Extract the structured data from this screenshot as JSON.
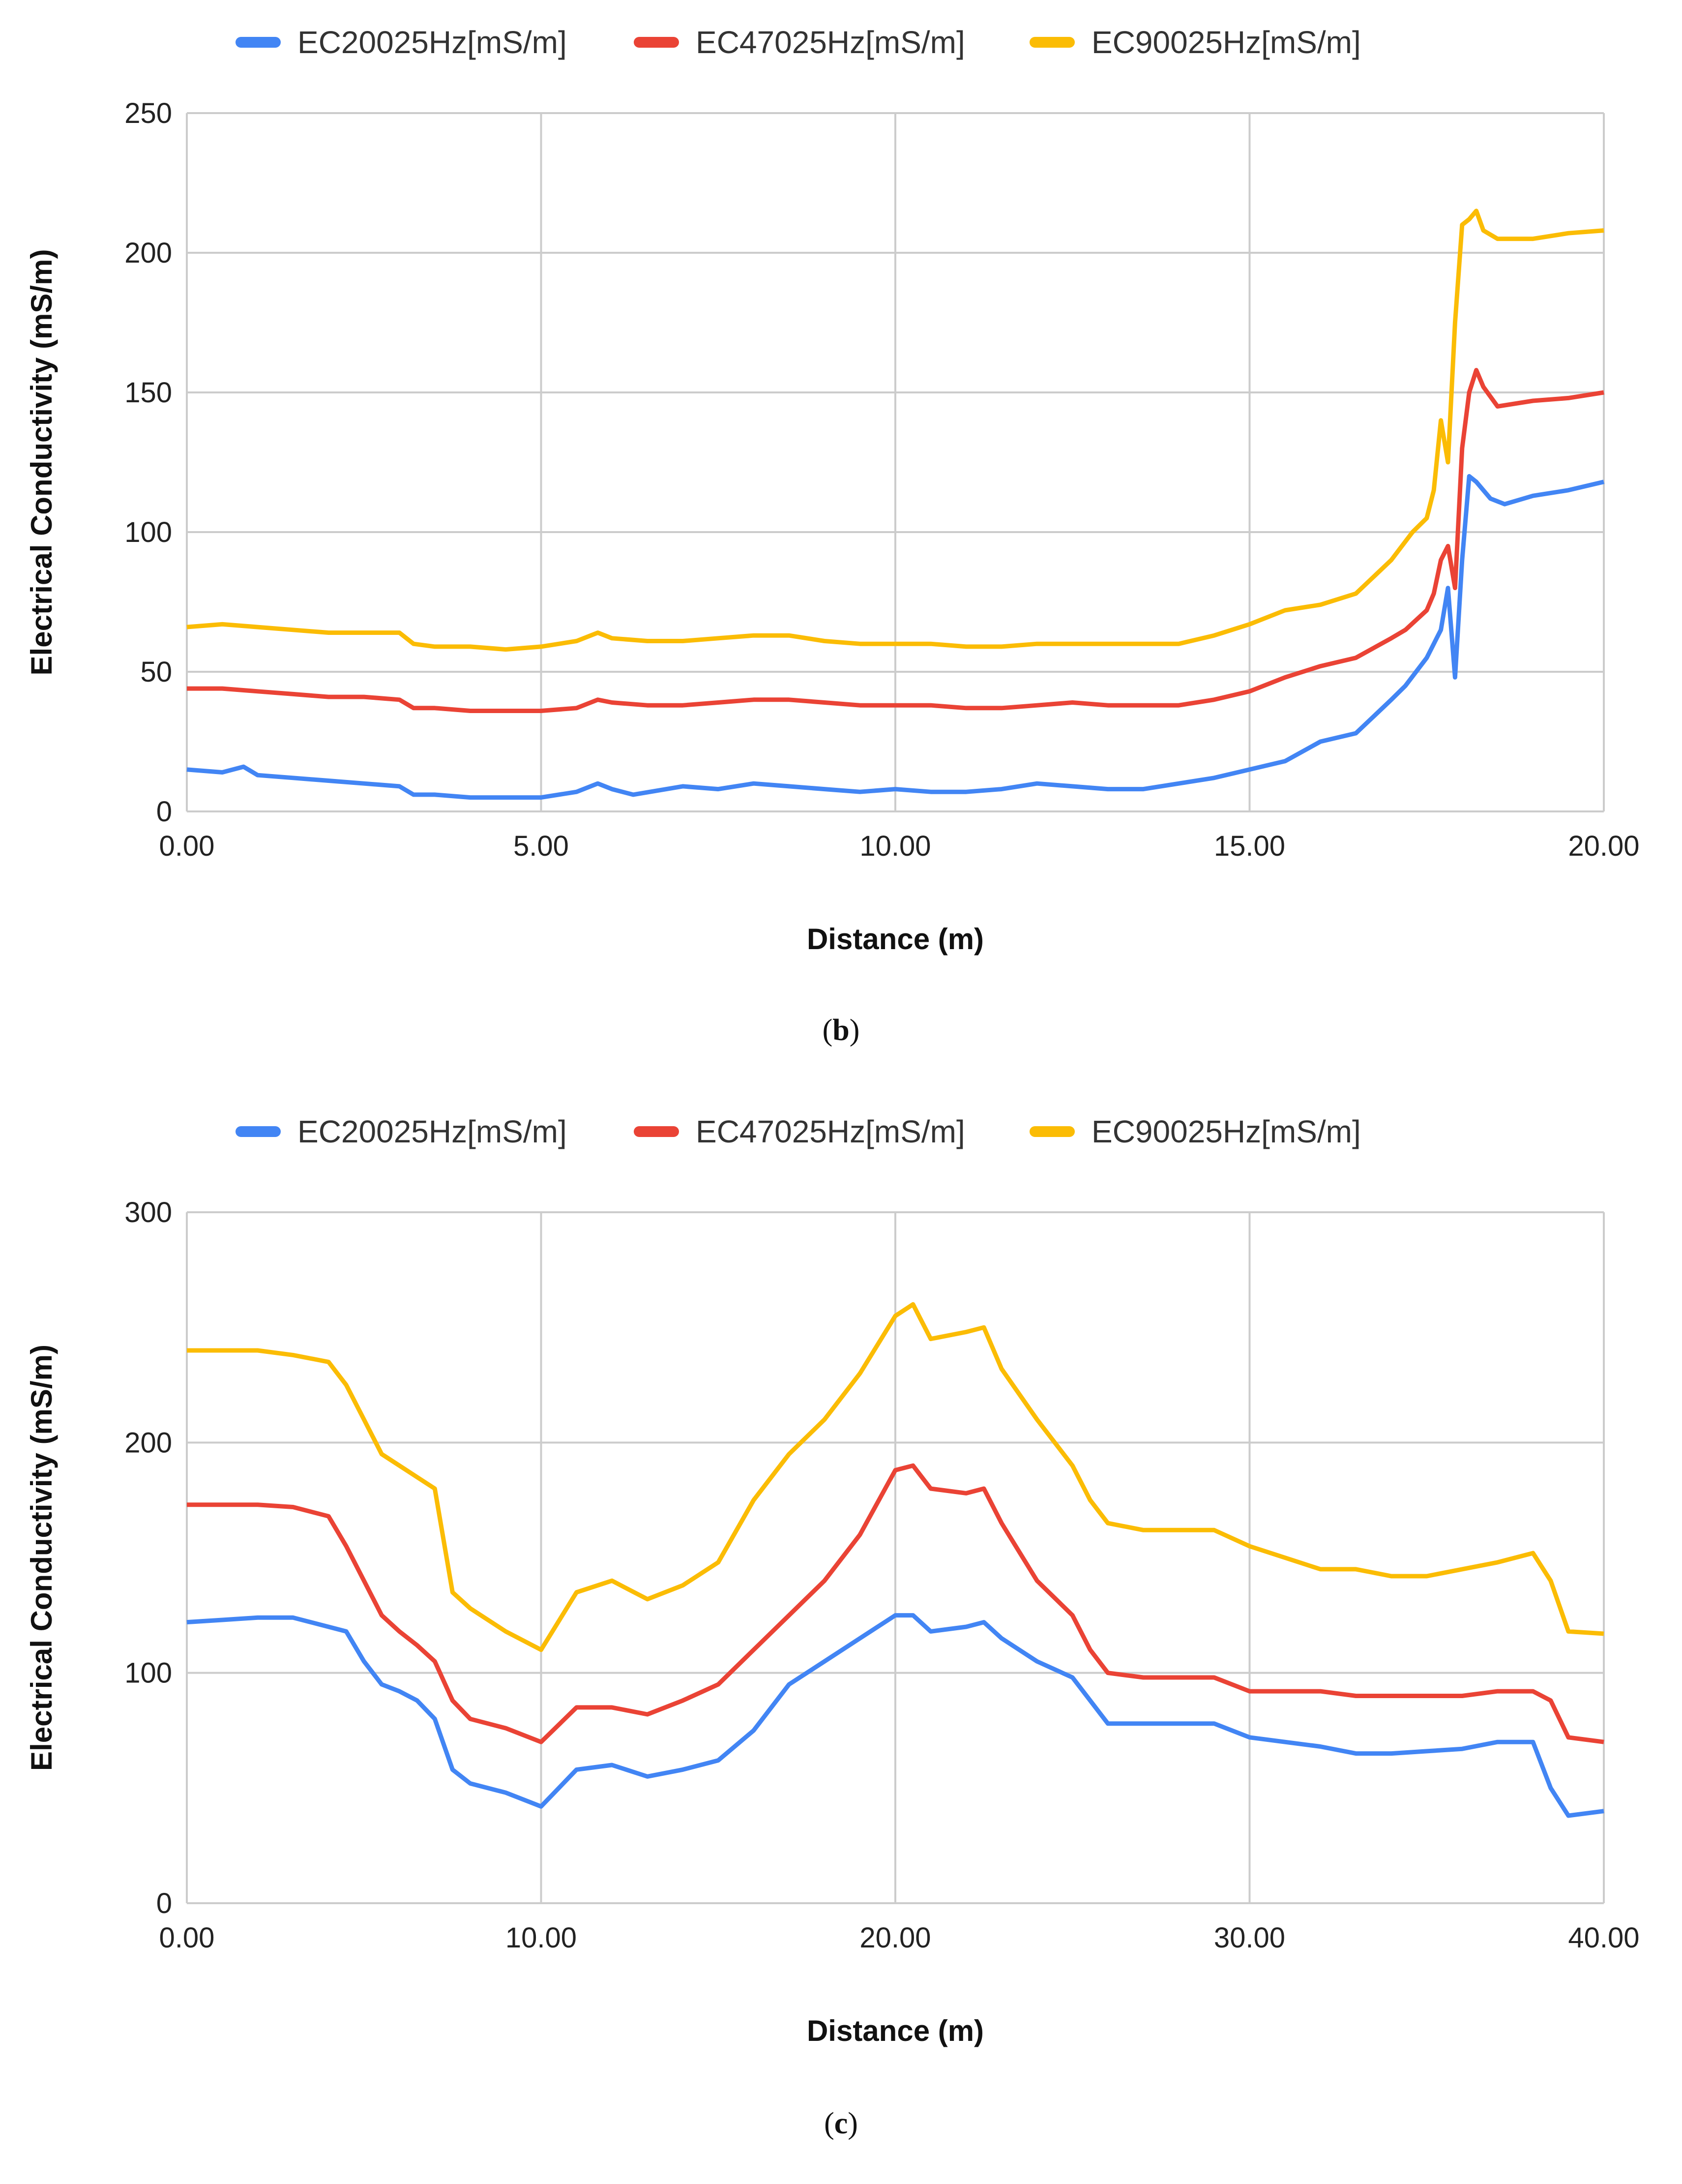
{
  "chart_data": [
    {
      "type": "line",
      "panel": "b",
      "caption": "b",
      "title": "",
      "xlabel": "Distance (m)",
      "ylabel": "Electrical Conductivity (mS/m)",
      "xlim": [
        0,
        20
      ],
      "ylim": [
        0,
        250
      ],
      "xticks": [
        "0.00",
        "5.00",
        "10.00",
        "15.00",
        "20.00"
      ],
      "yticks": [
        "0",
        "50",
        "100",
        "150",
        "200",
        "250"
      ],
      "grid": true,
      "legend_position": "top",
      "series": [
        {
          "name": "EC20025Hz[mS/m]",
          "color": "#4285f4",
          "x": [
            0,
            0.5,
            0.8,
            1,
            1.5,
            2,
            2.5,
            3,
            3.2,
            3.5,
            4,
            4.5,
            5,
            5.5,
            5.8,
            6,
            6.3,
            7,
            7.5,
            8,
            8.5,
            9,
            9.5,
            10,
            10.5,
            11,
            11.5,
            12,
            12.5,
            13,
            13.5,
            14,
            14.5,
            15,
            15.5,
            16,
            16.5,
            17,
            17.2,
            17.5,
            17.7,
            17.8,
            17.9,
            18,
            18.1,
            18.2,
            18.4,
            18.6,
            19,
            19.5,
            20
          ],
          "y": [
            15,
            14,
            16,
            13,
            12,
            11,
            10,
            9,
            6,
            6,
            5,
            5,
            5,
            7,
            10,
            8,
            6,
            9,
            8,
            10,
            9,
            8,
            7,
            8,
            7,
            7,
            8,
            10,
            9,
            8,
            8,
            10,
            12,
            15,
            18,
            25,
            28,
            40,
            45,
            55,
            65,
            80,
            48,
            90,
            120,
            118,
            112,
            110,
            113,
            115,
            118
          ]
        },
        {
          "name": "EC47025Hz[mS/m]",
          "color": "#ea4335",
          "x": [
            0,
            0.5,
            1,
            1.5,
            2,
            2.5,
            3,
            3.2,
            3.5,
            4,
            4.5,
            5,
            5.5,
            5.8,
            6,
            6.5,
            7,
            7.5,
            8,
            8.5,
            9,
            9.5,
            10,
            10.5,
            11,
            11.5,
            12,
            12.5,
            13,
            13.5,
            14,
            14.5,
            15,
            15.5,
            16,
            16.5,
            17,
            17.2,
            17.5,
            17.6,
            17.7,
            17.8,
            17.9,
            18,
            18.1,
            18.2,
            18.3,
            18.5,
            19,
            19.5,
            20
          ],
          "y": [
            44,
            44,
            43,
            42,
            41,
            41,
            40,
            37,
            37,
            36,
            36,
            36,
            37,
            40,
            39,
            38,
            38,
            39,
            40,
            40,
            39,
            38,
            38,
            38,
            37,
            37,
            38,
            39,
            38,
            38,
            38,
            40,
            43,
            48,
            52,
            55,
            62,
            65,
            72,
            78,
            90,
            95,
            80,
            130,
            150,
            158,
            152,
            145,
            147,
            148,
            150
          ]
        },
        {
          "name": "EC90025Hz[mS/m]",
          "color": "#fbbc04",
          "x": [
            0,
            0.5,
            1,
            1.5,
            2,
            2.5,
            3,
            3.2,
            3.5,
            4,
            4.5,
            5,
            5.5,
            5.8,
            6,
            6.5,
            7,
            7.5,
            8,
            8.5,
            9,
            9.5,
            10,
            10.5,
            11,
            11.5,
            12,
            12.5,
            13,
            13.5,
            14,
            14.5,
            15,
            15.5,
            16,
            16.5,
            17,
            17.3,
            17.5,
            17.6,
            17.7,
            17.8,
            17.9,
            18,
            18.1,
            18.2,
            18.3,
            18.5,
            19,
            19.5,
            20
          ],
          "y": [
            66,
            67,
            66,
            65,
            64,
            64,
            64,
            60,
            59,
            59,
            58,
            59,
            61,
            64,
            62,
            61,
            61,
            62,
            63,
            63,
            61,
            60,
            60,
            60,
            59,
            59,
            60,
            60,
            60,
            60,
            60,
            63,
            67,
            72,
            74,
            78,
            90,
            100,
            105,
            115,
            140,
            125,
            175,
            210,
            212,
            215,
            208,
            205,
            205,
            207,
            208
          ]
        }
      ]
    },
    {
      "type": "line",
      "panel": "c",
      "caption": "c",
      "title": "",
      "xlabel": "Distance (m)",
      "ylabel": "Electrical Conductivity (mS/m)",
      "xlim": [
        0,
        40
      ],
      "ylim": [
        0,
        300
      ],
      "xticks": [
        "0.00",
        "10.00",
        "20.00",
        "30.00",
        "40.00"
      ],
      "yticks": [
        "0",
        "100",
        "200",
        "300"
      ],
      "grid": true,
      "legend_position": "top",
      "series": [
        {
          "name": "EC20025Hz[mS/m]",
          "color": "#4285f4",
          "x": [
            0,
            1,
            2,
            3,
            4,
            4.5,
            5,
            5.5,
            6,
            6.5,
            7,
            7.5,
            8,
            9,
            10,
            11,
            12,
            13,
            14,
            15,
            16,
            17,
            18,
            19,
            20,
            20.5,
            21,
            22,
            22.5,
            23,
            24,
            25,
            25.5,
            26,
            27,
            28,
            29,
            30,
            31,
            32,
            33,
            34,
            35,
            36,
            37,
            38,
            38.5,
            39,
            40
          ],
          "y": [
            122,
            123,
            124,
            124,
            120,
            118,
            105,
            95,
            92,
            88,
            80,
            58,
            52,
            48,
            42,
            58,
            60,
            55,
            58,
            62,
            75,
            95,
            105,
            115,
            125,
            125,
            118,
            120,
            122,
            115,
            105,
            98,
            88,
            78,
            78,
            78,
            78,
            72,
            70,
            68,
            65,
            65,
            66,
            67,
            70,
            70,
            50,
            38,
            40
          ]
        },
        {
          "name": "EC47025Hz[mS/m]",
          "color": "#ea4335",
          "x": [
            0,
            1,
            2,
            3,
            4,
            4.5,
            5,
            5.5,
            6,
            6.5,
            7,
            7.5,
            8,
            9,
            10,
            11,
            12,
            13,
            14,
            15,
            16,
            17,
            18,
            19,
            20,
            20.5,
            21,
            22,
            22.5,
            23,
            24,
            25,
            25.5,
            26,
            27,
            28,
            29,
            30,
            31,
            32,
            33,
            34,
            35,
            36,
            37,
            38,
            38.5,
            39,
            40
          ],
          "y": [
            173,
            173,
            173,
            172,
            168,
            155,
            140,
            125,
            118,
            112,
            105,
            88,
            80,
            76,
            70,
            85,
            85,
            82,
            88,
            95,
            110,
            125,
            140,
            160,
            188,
            190,
            180,
            178,
            180,
            165,
            140,
            125,
            110,
            100,
            98,
            98,
            98,
            92,
            92,
            92,
            90,
            90,
            90,
            90,
            92,
            92,
            88,
            72,
            70
          ]
        },
        {
          "name": "EC90025Hz[mS/m]",
          "color": "#fbbc04",
          "x": [
            0,
            1,
            2,
            3,
            4,
            4.5,
            5,
            5.5,
            6,
            6.5,
            7,
            7.5,
            8,
            9,
            10,
            11,
            12,
            13,
            14,
            15,
            16,
            17,
            18,
            19,
            20,
            20.5,
            21,
            22,
            22.5,
            23,
            24,
            25,
            25.5,
            26,
            27,
            28,
            29,
            30,
            31,
            32,
            33,
            34,
            35,
            36,
            37,
            38,
            38.5,
            39,
            40
          ],
          "y": [
            240,
            240,
            240,
            238,
            235,
            225,
            210,
            195,
            190,
            185,
            180,
            135,
            128,
            118,
            110,
            135,
            140,
            132,
            138,
            148,
            175,
            195,
            210,
            230,
            255,
            260,
            245,
            248,
            250,
            232,
            210,
            190,
            175,
            165,
            162,
            162,
            162,
            155,
            150,
            145,
            145,
            142,
            142,
            145,
            148,
            152,
            140,
            118,
            117
          ]
        }
      ]
    }
  ]
}
